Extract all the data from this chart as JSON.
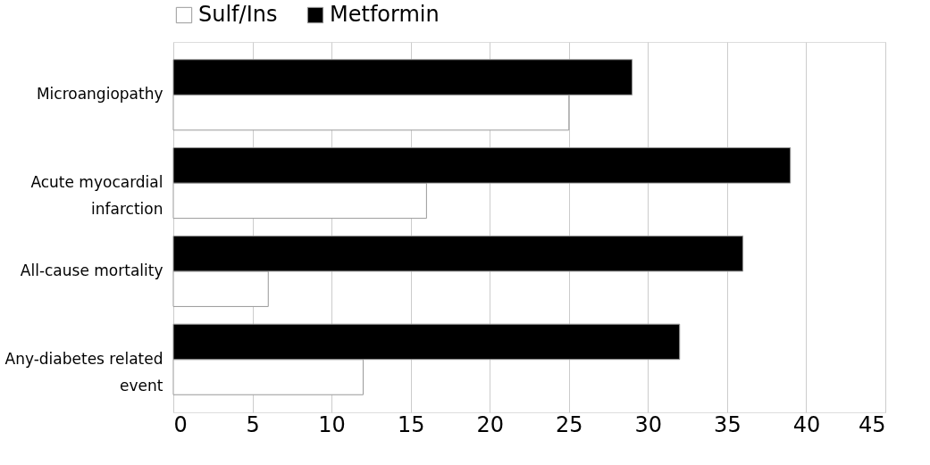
{
  "chart_data": {
    "type": "bar",
    "orientation": "horizontal",
    "categories": [
      "Microangiopathy",
      "Acute myocardial infarction",
      "All-cause mortality",
      "Any-diabetes related event"
    ],
    "series": [
      {
        "name": "Sulf/Ins",
        "color": "#ffffff",
        "values": [
          25,
          16,
          6,
          12
        ]
      },
      {
        "name": "Metformin",
        "color": "#000000",
        "values": [
          29,
          39,
          36,
          32
        ]
      }
    ],
    "xlim": [
      0,
      45
    ],
    "xticks": [
      0,
      5,
      10,
      15,
      20,
      25,
      30,
      35,
      40,
      45
    ],
    "grid": "x",
    "legend": "top"
  }
}
